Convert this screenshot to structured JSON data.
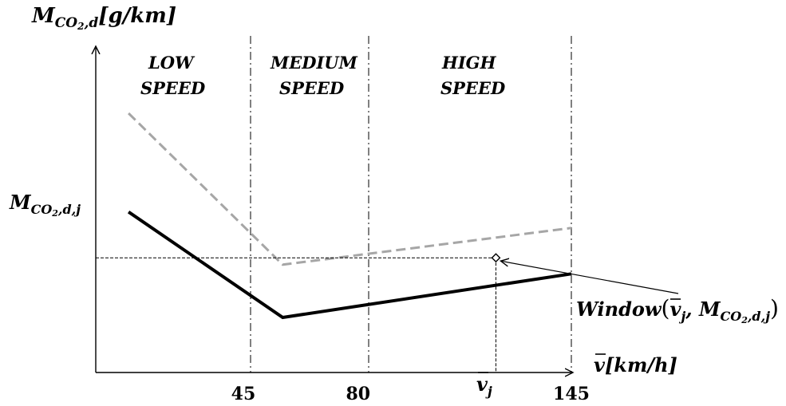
{
  "axes": {
    "y_symbol": "M",
    "y_subscript": "CO",
    "y_subscript_2": "2",
    "y_subscript_tail": ",d",
    "y_unit": "[g/km]",
    "x_symbol": "v",
    "x_unit": "[km/h]",
    "x_ticks": [
      "45",
      "80",
      "145"
    ],
    "x_tick_values": [
      45,
      80,
      145
    ],
    "vj_symbol": "v",
    "vj_subscript": "j",
    "mj_symbol": "M",
    "mj_subscript": "CO",
    "mj_subscript_2": "2",
    "mj_subscript_tail": ",d,j"
  },
  "zones": [
    {
      "line1": "LOW",
      "line2": "SPEED"
    },
    {
      "line1": "MEDIUM",
      "line2": "SPEED"
    },
    {
      "line1": "HIGH",
      "line2": "SPEED"
    }
  ],
  "annotation": {
    "prefix": "Window",
    "open": "(",
    "v_symbol": "v",
    "v_sub": "j",
    "comma": ", ",
    "m_symbol": "M",
    "m_sub": "CO",
    "m_sub_2": "2",
    "m_sub_tail": ",d,j",
    "close": ")"
  },
  "chart_data": {
    "type": "line",
    "x_range": [
      0,
      145
    ],
    "series": [
      {
        "style": "solid",
        "color": "#000000",
        "x": [
          10,
          57,
          145
        ],
        "y": [
          70,
          24,
          43
        ]
      },
      {
        "style": "dashed",
        "color": "#a6a6a6",
        "x": [
          10,
          57,
          145
        ],
        "y": [
          113,
          47,
          63
        ]
      }
    ],
    "point": {
      "x": 122,
      "y": 50
    }
  },
  "colors": {
    "axis": "#000000",
    "solid_line": "#000000",
    "dashed_line": "#a6a6a6"
  }
}
